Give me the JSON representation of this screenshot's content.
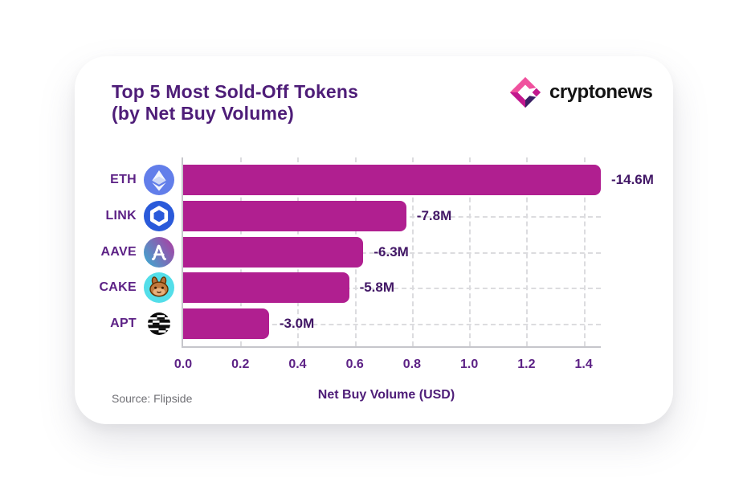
{
  "header": {
    "title_line1": "Top 5 Most Sold-Off Tokens",
    "title_line2": "(by Net Buy Volume)",
    "logo_text": "cryptonews"
  },
  "chart_data": {
    "type": "bar",
    "orientation": "horizontal",
    "title": "Top 5 Most Sold-Off Tokens (by Net Buy Volume)",
    "categories": [
      "ETH",
      "LINK",
      "AAVE",
      "CAKE",
      "APT"
    ],
    "values_usd_millions": [
      -14.6,
      -7.8,
      -6.3,
      -5.8,
      -3.0
    ],
    "bar_labels": [
      "-14.6M",
      "-7.8M",
      "-6.3M",
      "-5.8M",
      "-3.0M"
    ],
    "x_ticks": [
      "0.0",
      "0.2",
      "0.4",
      "0.6",
      "0.8",
      "1.0",
      "1.2",
      "1.4"
    ],
    "x_tick_step_units": 0.2,
    "x_max_units": 1.46,
    "unit_scale_note": "axis unit = 10M USD (absolute value)",
    "xlabel": "Net Buy Volume (USD)",
    "source": "Source: Flipside",
    "grid": "dashed",
    "legend": "none",
    "bar_color": "#b01f90",
    "icon_names": [
      "eth-icon",
      "link-icon",
      "aave-icon",
      "cake-icon",
      "apt-icon"
    ]
  },
  "colors": {
    "title": "#4e1d78",
    "tick_label": "#5d2286",
    "value_label": "#421766",
    "bar": "#b01f90",
    "axis_line": "#c6c6cb",
    "grid_line": "#dcdcdf",
    "source_text": "#6f6f74",
    "logo_pink": "#f0519e",
    "logo_magenta": "#c2188e",
    "logo_dark": "#3b2064"
  }
}
